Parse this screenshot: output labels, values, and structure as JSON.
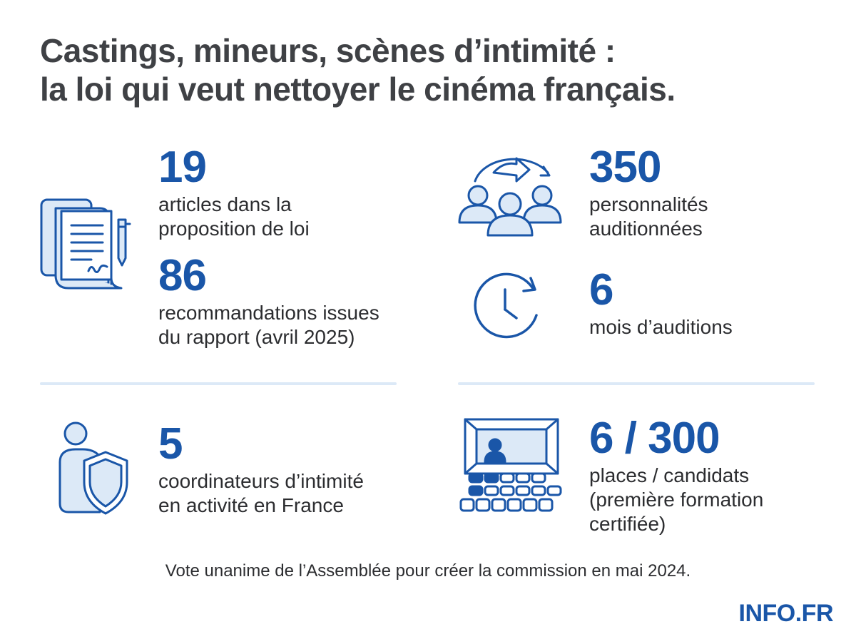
{
  "title": {
    "line1": "Castings, mineurs, scènes d’intimité :",
    "line2": "la loi qui veut nettoyer le cinéma français."
  },
  "stats": {
    "articles": {
      "number": "19",
      "label1": "articles dans la",
      "label2": "proposition de loi"
    },
    "recommandations": {
      "number": "86",
      "label1": "recommandations issues",
      "label2": "du rapport (avril 2025)"
    },
    "personnalites": {
      "number": "350",
      "label1": "personnalités",
      "label2": "auditionnées"
    },
    "mois": {
      "number": "6",
      "label1": "mois d’auditions"
    },
    "coordinateurs": {
      "number": "5",
      "label1": "coordinateurs d’intimité",
      "label2": "en activité en France"
    },
    "places": {
      "number": "6 / 300",
      "label1": "places / candidats",
      "label2": "(première formation",
      "label3": "certifiée)"
    }
  },
  "footnote": "Vote unanime de l’Assemblée pour créer la commission en mai 2024.",
  "brand": "INFO.FR",
  "icons": [
    "document-pen-icon",
    "people-rotation-icon",
    "clock-icon",
    "person-shield-icon",
    "cinema-audience-icon"
  ],
  "colors": {
    "accent": "#1a56a8",
    "icon_fill": "#dce9f7",
    "title": "#3f4145",
    "divider": "#dce9f7"
  }
}
